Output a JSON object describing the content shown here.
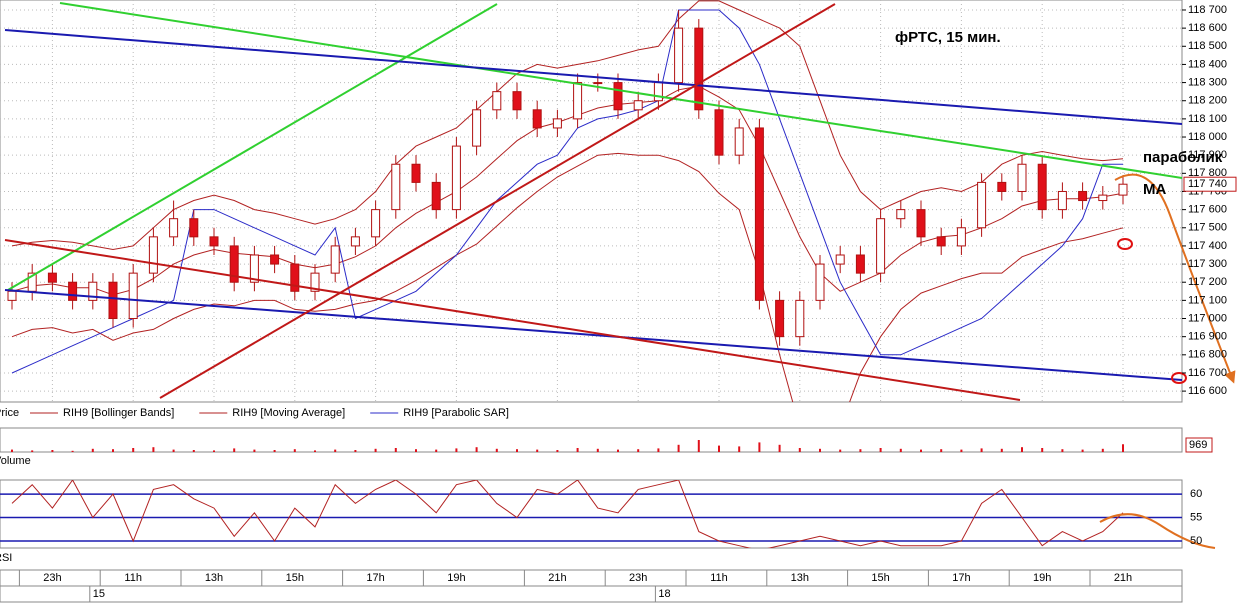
{
  "chart_data": [
    {
      "type": "candlestick",
      "annotations": [
        "фРТС, 15 мин.",
        "параболик",
        "МА"
      ],
      "legend_first": "Price",
      "categories": [
        null,
        null,
        "23h",
        null,
        null,
        null,
        "11h",
        null,
        null,
        null,
        "13h",
        null,
        null,
        null,
        "15h",
        null,
        null,
        null,
        "17h",
        null,
        null,
        null,
        "19h",
        null,
        null,
        null,
        null,
        "21h",
        null,
        null,
        null,
        "23h",
        null,
        null,
        null,
        "11h",
        null,
        null,
        null,
        "13h",
        null,
        null,
        null,
        "15h",
        null,
        null,
        null,
        "17h",
        null,
        null,
        null,
        "19h",
        null,
        null,
        null,
        "21h"
      ],
      "dates": [
        null,
        null,
        null,
        null,
        "15",
        null,
        null,
        null,
        null,
        null,
        null,
        null,
        null,
        null,
        null,
        null,
        null,
        null,
        null,
        null,
        null,
        null,
        null,
        null,
        null,
        null,
        null,
        null,
        null,
        null,
        null,
        null,
        "18",
        null,
        null,
        null,
        null,
        null,
        null,
        null,
        null,
        null,
        null,
        null,
        null,
        null,
        null,
        null,
        null,
        null,
        null,
        null,
        null,
        null,
        null,
        null
      ],
      "open": [
        117100,
        117150,
        117250,
        117200,
        117100,
        117200,
        117000,
        117250,
        117450,
        117550,
        117450,
        117400,
        117200,
        117350,
        117300,
        117150,
        117250,
        117400,
        117450,
        117600,
        117850,
        117750,
        117600,
        117950,
        118150,
        118250,
        118150,
        118050,
        118100,
        118300,
        118300,
        118150,
        118200,
        118300,
        118600,
        118150,
        117900,
        118050,
        117100,
        116900,
        117100,
        117300,
        117350,
        117250,
        117550,
        117600,
        117450,
        117400,
        117500,
        117750,
        117700,
        117850,
        117600,
        117700,
        117650,
        117680
      ],
      "high": [
        117200,
        117300,
        117300,
        117250,
        117250,
        117250,
        117300,
        117500,
        117650,
        117600,
        117500,
        117450,
        117400,
        117400,
        117350,
        117300,
        117450,
        117500,
        117650,
        117900,
        117900,
        117800,
        118000,
        118200,
        118300,
        118300,
        118200,
        118150,
        118350,
        118350,
        118350,
        118250,
        118350,
        118700,
        118650,
        118200,
        118100,
        118100,
        117150,
        117150,
        117350,
        117400,
        117400,
        117600,
        117650,
        117650,
        117500,
        117550,
        117800,
        117800,
        117900,
        117900,
        117750,
        117750,
        117730,
        117790
      ],
      "low": [
        117050,
        117100,
        117150,
        117050,
        117050,
        116950,
        116950,
        117200,
        117400,
        117400,
        117350,
        117150,
        117150,
        117250,
        117100,
        117100,
        117200,
        117350,
        117400,
        117550,
        117700,
        117550,
        117550,
        117900,
        118100,
        118100,
        118000,
        118000,
        118050,
        118250,
        118100,
        118100,
        118150,
        118250,
        118100,
        117850,
        117850,
        117050,
        116850,
        116850,
        117050,
        117250,
        117200,
        117200,
        117500,
        117400,
        117350,
        117350,
        117450,
        117650,
        117650,
        117550,
        117550,
        117600,
        117600,
        117630
      ],
      "close": [
        117150,
        117250,
        117200,
        117100,
        117200,
        117000,
        117250,
        117450,
        117550,
        117450,
        117400,
        117200,
        117350,
        117300,
        117150,
        117250,
        117400,
        117450,
        117600,
        117850,
        117750,
        117600,
        117950,
        118150,
        118250,
        118150,
        118050,
        118100,
        118300,
        118300,
        118150,
        118200,
        118300,
        118600,
        118150,
        117900,
        118050,
        117100,
        116900,
        117100,
        117300,
        117350,
        117250,
        117550,
        117600,
        117450,
        117400,
        117500,
        117750,
        117700,
        117850,
        117600,
        117700,
        117650,
        117680,
        117740
      ],
      "up_color": "#ffffff",
      "down_color": "#e0101a",
      "wick_color": "#b01010",
      "series": [
        {
          "name": "RIH9 [Bollinger Bands]",
          "color": "#b22222",
          "upper": [
            117400,
            117420,
            117430,
            117420,
            117400,
            117380,
            117400,
            117500,
            117600,
            117650,
            117680,
            117650,
            117600,
            117580,
            117550,
            117520,
            117550,
            117600,
            117700,
            117850,
            117950,
            118000,
            118050,
            118150,
            118250,
            118350,
            118400,
            118380,
            118400,
            118420,
            118450,
            118480,
            118500,
            118650,
            118750,
            118750,
            118700,
            118650,
            118600,
            118500,
            118200,
            117900,
            117700,
            117600,
            117650,
            117700,
            117720,
            117700,
            117750,
            117850,
            117900,
            117920,
            117900,
            117880,
            117870,
            117880
          ],
          "lower": [
            116900,
            116940,
            116950,
            116920,
            116940,
            116880,
            116920,
            116940,
            117000,
            117050,
            117080,
            117070,
            117100,
            117100,
            117050,
            117040,
            117050,
            117080,
            117100,
            117150,
            117210,
            117280,
            117350,
            117410,
            117510,
            117610,
            117700,
            117780,
            117840,
            117900,
            117910,
            117900,
            117900,
            117870,
            117810,
            117690,
            117600,
            117250,
            116800,
            116400,
            116300,
            116400,
            116700,
            116900,
            117050,
            117140,
            117180,
            117220,
            117250,
            117250,
            117340,
            117380,
            117420,
            117440,
            117470,
            117500
          ]
        },
        {
          "name": "RIH9 [Moving Average]",
          "color": "#b22222",
          "values": [
            117150,
            117180,
            117190,
            117170,
            117170,
            117130,
            117160,
            117220,
            117300,
            117350,
            117380,
            117360,
            117350,
            117340,
            117300,
            117280,
            117300,
            117340,
            117400,
            117500,
            117580,
            117640,
            117700,
            117780,
            117880,
            117980,
            118050,
            118080,
            118120,
            118160,
            118180,
            118190,
            118200,
            118260,
            118280,
            118220,
            118150,
            117950,
            117700,
            117450,
            117250,
            117150,
            117200,
            117250,
            117350,
            117420,
            117450,
            117460,
            117500,
            117550,
            117620,
            117650,
            117660,
            117660,
            117670,
            117690
          ]
        },
        {
          "name": "RIH9 [Parabolic SAR]",
          "color": "#2b2bc8",
          "values": [
            116700,
            116750,
            116800,
            116850,
            116900,
            116950,
            117000,
            117050,
            117100,
            117600,
            117600,
            117550,
            117500,
            117450,
            117400,
            117350,
            117500,
            117000,
            117050,
            117100,
            117150,
            117250,
            117350,
            117500,
            117650,
            117750,
            117850,
            117900,
            118050,
            118100,
            118120,
            118150,
            118200,
            118700,
            118700,
            118700,
            118600,
            118400,
            118100,
            117800,
            117500,
            117200,
            117000,
            116800,
            116800,
            116850,
            116900,
            116950,
            117000,
            117100,
            117200,
            117300,
            117400,
            117550,
            117850,
            117850
          ]
        }
      ],
      "last_price": {
        "value": 117740,
        "label": "117 740"
      },
      "ylim": [
        116540,
        118755
      ],
      "yticks": [
        {
          "value": 116600,
          "label": "116 600"
        },
        {
          "value": 116700,
          "label": "116 700"
        },
        {
          "value": 116800,
          "label": "116 800"
        },
        {
          "value": 116900,
          "label": "116 900"
        },
        {
          "value": 117000,
          "label": "117 000"
        },
        {
          "value": 117100,
          "label": "117 100"
        },
        {
          "value": 117200,
          "label": "117 200"
        },
        {
          "value": 117300,
          "label": "117 300"
        },
        {
          "value": 117400,
          "label": "117 400"
        },
        {
          "value": 117500,
          "label": "117 500"
        },
        {
          "value": 117600,
          "label": "117 600"
        },
        {
          "value": 117700,
          "label": "117 700"
        },
        {
          "value": 117800,
          "label": "117 800"
        },
        {
          "value": 117900,
          "label": "117 900"
        },
        {
          "value": 118000,
          "label": "118 000"
        },
        {
          "value": 118100,
          "label": "118 100"
        },
        {
          "value": 118200,
          "label": "118 200"
        },
        {
          "value": 118300,
          "label": "118 300"
        },
        {
          "value": 118400,
          "label": "118 400"
        },
        {
          "value": 118500,
          "label": "118 500"
        },
        {
          "value": 118600,
          "label": "118 600"
        },
        {
          "value": 118700,
          "label": "118 700"
        }
      ],
      "grid": true
    },
    {
      "type": "bar",
      "name": "Volume",
      "color": "#e0101a",
      "values": [
        300,
        200,
        250,
        150,
        400,
        350,
        500,
        600,
        300,
        250,
        200,
        450,
        300,
        250,
        350,
        200,
        300,
        250,
        400,
        500,
        350,
        300,
        450,
        600,
        400,
        350,
        300,
        250,
        500,
        400,
        300,
        350,
        450,
        900,
        1500,
        800,
        700,
        1200,
        900,
        500,
        400,
        300,
        350,
        500,
        400,
        300,
        350,
        300,
        450,
        400,
        600,
        500,
        350,
        300,
        400,
        969
      ],
      "ylim": [
        0,
        3000
      ]
    },
    {
      "type": "line",
      "name": "RSI",
      "color": "#b22222",
      "values": [
        58,
        62,
        57,
        63,
        55,
        60,
        50,
        61,
        62,
        59,
        57,
        51,
        56,
        50,
        57,
        53,
        62,
        58,
        61,
        63,
        60,
        56,
        62,
        63,
        58,
        55,
        61,
        60,
        63,
        57,
        56,
        61,
        62,
        63,
        52,
        50,
        49,
        48,
        49,
        50,
        51,
        50,
        49,
        50,
        49,
        49,
        49,
        50,
        58,
        61,
        55,
        49,
        52,
        50,
        52,
        56
      ],
      "ylim": [
        48.5,
        63
      ],
      "yticks": [
        50,
        55,
        60
      ],
      "grid": true
    }
  ]
}
